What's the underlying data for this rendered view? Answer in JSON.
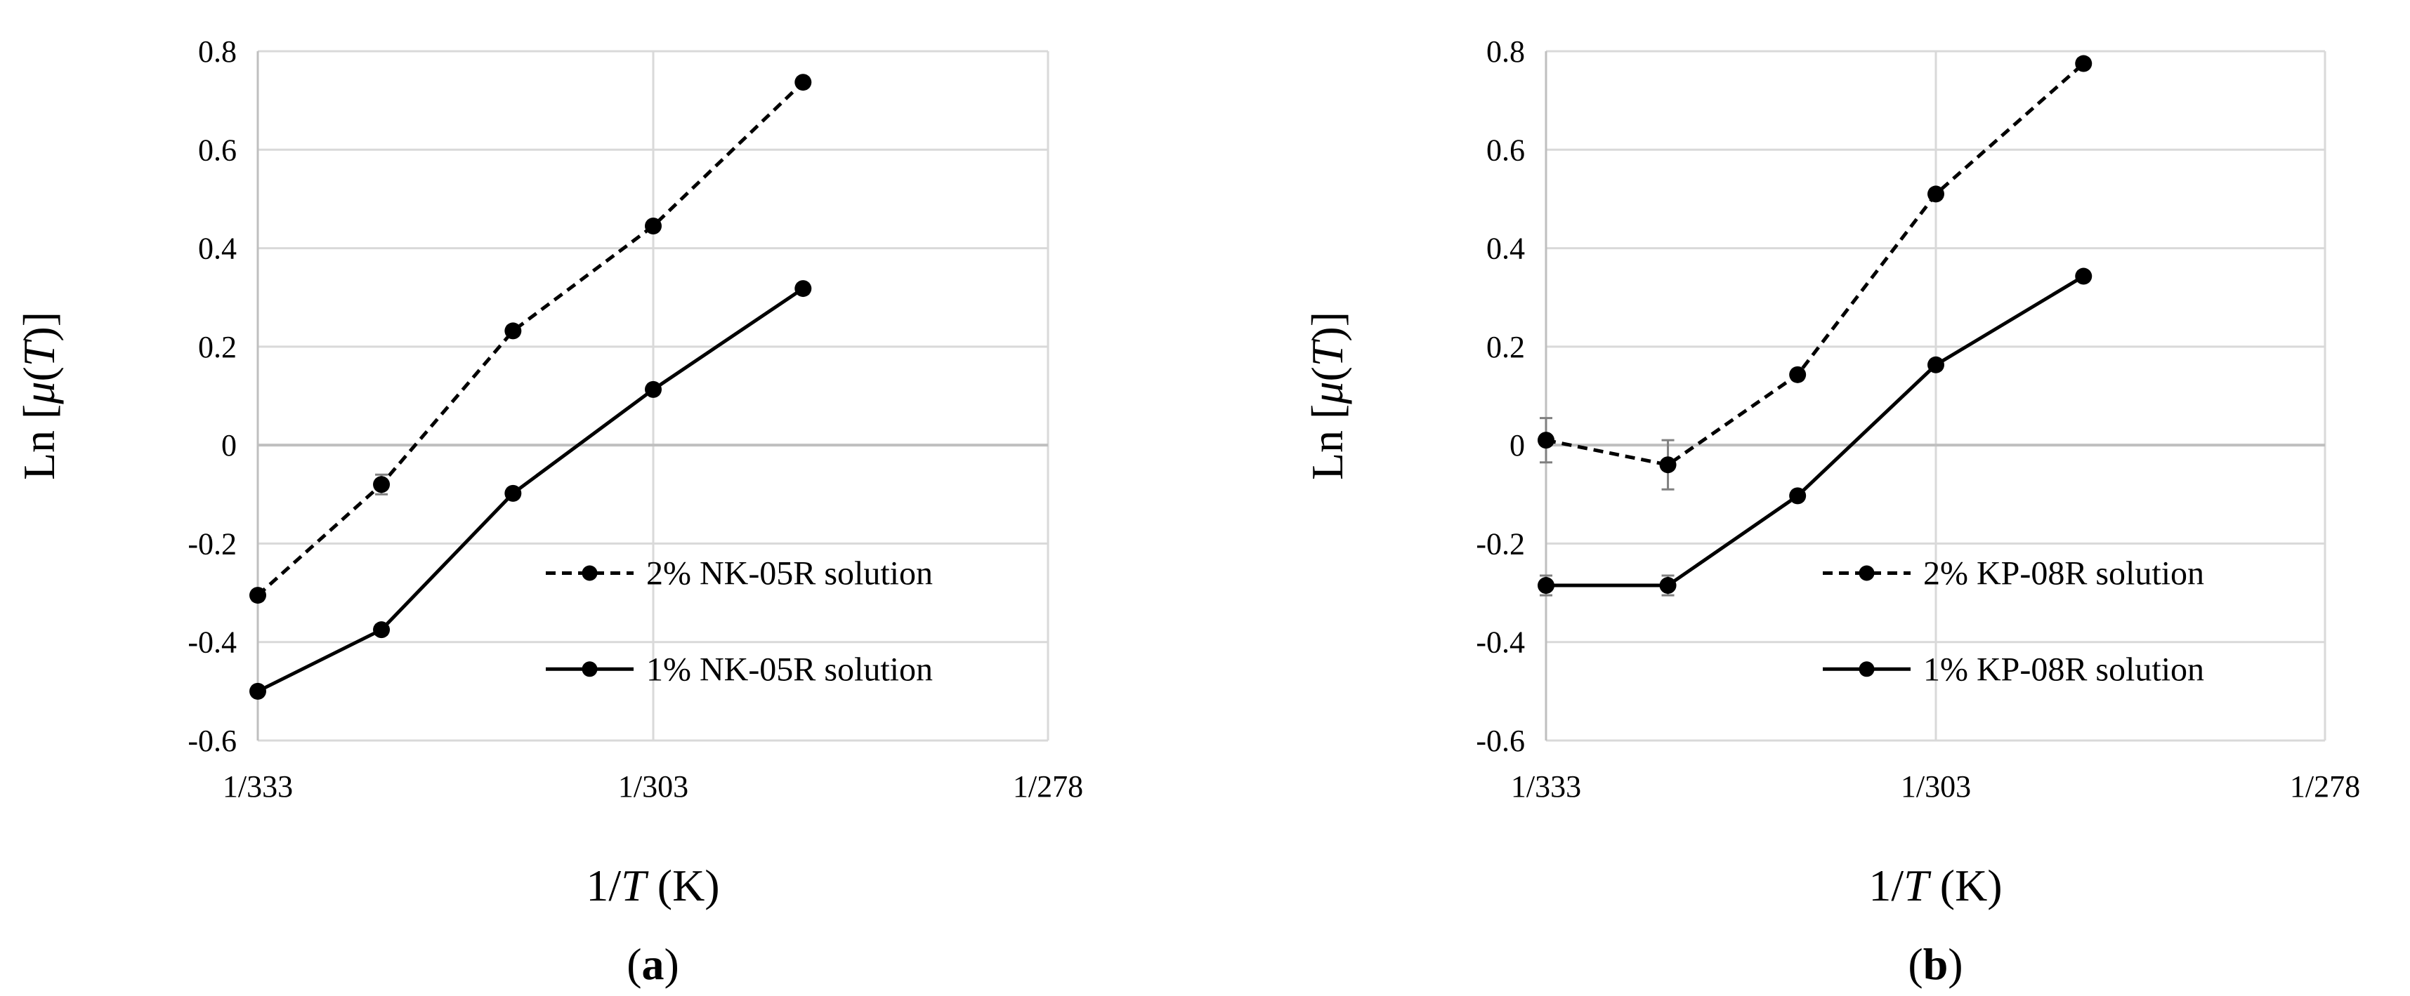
{
  "chart_data": [
    {
      "type": "line",
      "panel_label": "a",
      "xlabel_prefix": "1/",
      "xlabel_var": "T",
      "xlabel_unit": " (K)",
      "ylabel_prefix": "Ln [",
      "ylabel_var": "μ",
      "ylabel_mid": "(",
      "ylabel_var2": "T",
      "ylabel_suffix": ")]",
      "x_tick_labels": [
        "1/333",
        "1/303",
        "1/278"
      ],
      "y_tick_labels": [
        "0.8",
        "0.6",
        "0.4",
        "0.2",
        "0",
        "-0.2",
        "-0.4",
        "-0.6"
      ],
      "ylim": [
        -0.6,
        0.8
      ],
      "legend_position": "lower-right",
      "series": [
        {
          "name": "2% NK-05R solution",
          "style": "dashed",
          "x_kelvin": [
            333,
            323,
            313,
            303,
            293
          ],
          "values": [
            -0.305,
            -0.08,
            0.232,
            0.445,
            0.737
          ],
          "errors": [
            0.01,
            0.02,
            0.01,
            0.01,
            0.01
          ]
        },
        {
          "name": "1% NK-05R solution",
          "style": "solid",
          "x_kelvin": [
            333,
            323,
            313,
            303,
            293
          ],
          "values": [
            -0.5,
            -0.375,
            -0.098,
            0.113,
            0.318
          ],
          "errors": [
            0.01,
            0.01,
            0.01,
            0.01,
            0.01
          ]
        }
      ]
    },
    {
      "type": "line",
      "panel_label": "b",
      "xlabel_prefix": "1/",
      "xlabel_var": "T",
      "xlabel_unit": " (K)",
      "ylabel_prefix": "Ln [",
      "ylabel_var": "μ",
      "ylabel_mid": "(",
      "ylabel_var2": "T",
      "ylabel_suffix": ")]",
      "x_tick_labels": [
        "1/333",
        "1/303",
        "1/278"
      ],
      "y_tick_labels": [
        "0.8",
        "0.6",
        "0.4",
        "0.2",
        "0",
        "-0.2",
        "-0.4",
        "-0.6"
      ],
      "ylim": [
        -0.6,
        0.8
      ],
      "legend_position": "lower-right",
      "series": [
        {
          "name": "2% KP-08R solution",
          "style": "dashed",
          "x_kelvin": [
            333,
            323,
            313,
            303,
            293
          ],
          "values": [
            0.01,
            -0.04,
            0.143,
            0.51,
            0.775
          ],
          "errors": [
            0.045,
            0.05,
            0.01,
            0.01,
            0.01
          ]
        },
        {
          "name": "1% KP-08R solution",
          "style": "solid",
          "x_kelvin": [
            333,
            323,
            313,
            303,
            293
          ],
          "values": [
            -0.285,
            -0.285,
            -0.103,
            0.163,
            0.343
          ],
          "errors": [
            0.02,
            0.02,
            0.01,
            0.01,
            0.01
          ]
        }
      ]
    }
  ]
}
